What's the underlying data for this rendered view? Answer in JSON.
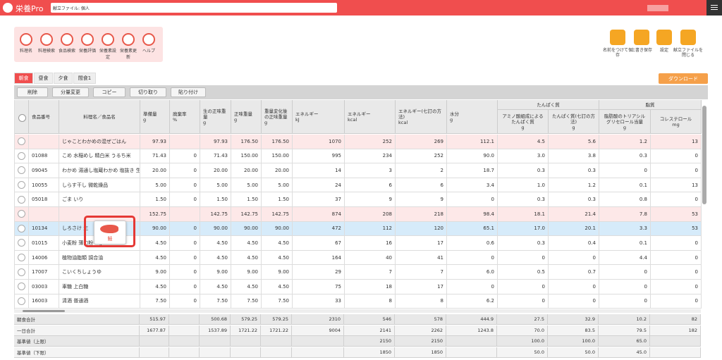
{
  "header": {
    "logo": "栄養Pro",
    "file": "献立ファイル: 個人"
  },
  "tools": [
    "料理名",
    "料理検索",
    "食品検索",
    "栄養評価",
    "栄養素設定",
    "栄養素更新",
    "ヘルプ"
  ],
  "file_actions": [
    "名前をつけて保存",
    "上書き保存",
    "設定",
    "献立ファイルを閉じる"
  ],
  "tabs": [
    "朝食",
    "昼食",
    "夕食",
    "間食1"
  ],
  "download": "ダウンロード",
  "edit_actions": [
    "削除",
    "分量変更",
    "コピー",
    "切り取り",
    "貼り付け"
  ],
  "table": {
    "groups": [
      "たんぱく質",
      "脂質"
    ],
    "columns": [
      {
        "name": "食品番号"
      },
      {
        "name": "料理名／食品名"
      },
      {
        "name": "準備量",
        "unit": "g"
      },
      {
        "name": "廃棄率",
        "unit": "%"
      },
      {
        "name": "生の正味重量",
        "unit": "g"
      },
      {
        "name": "正味重量",
        "unit": "g"
      },
      {
        "name": "重量変化後の正味重量",
        "unit": "g"
      },
      {
        "name": "エネルギー",
        "unit": "kJ"
      },
      {
        "name": "エネルギー",
        "unit": "kcal"
      },
      {
        "name": "エネルギー(七訂の方法)",
        "unit": "kcal"
      },
      {
        "name": "水分",
        "unit": "g"
      },
      {
        "name": "アミノ酸組成によるたんぱく質",
        "unit": "g"
      },
      {
        "name": "たんぱく質(七訂の方法)",
        "unit": "g"
      },
      {
        "name": "脂肪酸のトリアシルグリセロール当量",
        "unit": "g"
      },
      {
        "name": "コレステロール",
        "unit": "mg"
      }
    ],
    "rows": [
      [
        null,
        "じゃことわかめの混ぜごはん",
        "97.93",
        null,
        "97.93",
        "176.50",
        "176.50",
        "1070",
        "252",
        "269",
        "112.1",
        "4.5",
        "5.6",
        "1.2",
        "13"
      ],
      [
        "01088",
        "こめ 水稲めし 精白米 うるち米",
        "71.43",
        "0",
        "71.43",
        "150.00",
        "150.00",
        "995",
        "234",
        "252",
        "90.0",
        "3.0",
        "3.8",
        "0.3",
        "0"
      ],
      [
        "09045",
        "わかめ 湯通し塩蔵わかめ 塩抜き 生",
        "20.00",
        "0",
        "20.00",
        "20.00",
        "20.00",
        "14",
        "3",
        "2",
        "18.7",
        "0.3",
        "0.3",
        "0",
        "0"
      ],
      [
        "10055",
        "しらす干し 微乾燥品",
        "5.00",
        "0",
        "5.00",
        "5.00",
        "5.00",
        "24",
        "6",
        "6",
        "3.4",
        "1.0",
        "1.2",
        "0.1",
        "13"
      ],
      [
        "05018",
        "ごま いり",
        "1.50",
        "0",
        "1.50",
        "1.50",
        "1.50",
        "37",
        "9",
        "9",
        "0",
        "0.3",
        "0.3",
        "0.8",
        "0"
      ],
      [
        null,
        null,
        "152.75",
        null,
        "142.75",
        "142.75",
        "142.75",
        "874",
        "208",
        "218",
        "98.4",
        "18.1",
        "21.4",
        "7.8",
        "53"
      ],
      [
        "10134",
        "しろさけ 生",
        "90.00",
        "0",
        "90.00",
        "90.00",
        "90.00",
        "472",
        "112",
        "120",
        "65.1",
        "17.0",
        "20.1",
        "3.3",
        "53"
      ],
      [
        "01015",
        "小麦粉 薄力粉 1等",
        "4.50",
        "0",
        "4.50",
        "4.50",
        "4.50",
        "67",
        "16",
        "17",
        "0.6",
        "0.3",
        "0.4",
        "0.1",
        "0"
      ],
      [
        "14006",
        "植物油脂類 調合油",
        "4.50",
        "0",
        "4.50",
        "4.50",
        "4.50",
        "164",
        "40",
        "41",
        "0",
        "0",
        "0",
        "4.4",
        "0"
      ],
      [
        "17007",
        "こいくちしょうゆ",
        "9.00",
        "0",
        "9.00",
        "9.00",
        "9.00",
        "29",
        "7",
        "7",
        "6.0",
        "0.5",
        "0.7",
        "0",
        "0"
      ],
      [
        "03003",
        "車糖 上白糖",
        "4.50",
        "0",
        "4.50",
        "4.50",
        "4.50",
        "75",
        "18",
        "17",
        "0",
        "0",
        "0",
        "0",
        "0"
      ],
      [
        "16003",
        "清酒 普通酒",
        "7.50",
        "0",
        "7.50",
        "7.50",
        "7.50",
        "33",
        "8",
        "8",
        "6.2",
        "0",
        "0",
        "0",
        "0"
      ]
    ],
    "totals": [
      [
        "朝食合計",
        "515.97",
        null,
        "500.68",
        "579.25",
        "579.25",
        "2310",
        "546",
        "578",
        "444.9",
        "27.5",
        "32.9",
        "10.2",
        "82"
      ],
      [
        "一日合計",
        "1677.87",
        null,
        "1537.89",
        "1721.22",
        "1721.22",
        "9004",
        "2141",
        "2262",
        "1243.8",
        "70.0",
        "83.5",
        "79.5",
        "182"
      ],
      [
        "基準値（上限）",
        null,
        null,
        null,
        null,
        null,
        null,
        "2150",
        "2150",
        null,
        "100.0",
        "100.0",
        "65.0",
        null
      ],
      [
        "基準値（下限）",
        null,
        null,
        null,
        null,
        null,
        null,
        "1850",
        "1850",
        null,
        "50.0",
        "50.0",
        "45.0",
        null
      ]
    ]
  },
  "popup": "鮭"
}
